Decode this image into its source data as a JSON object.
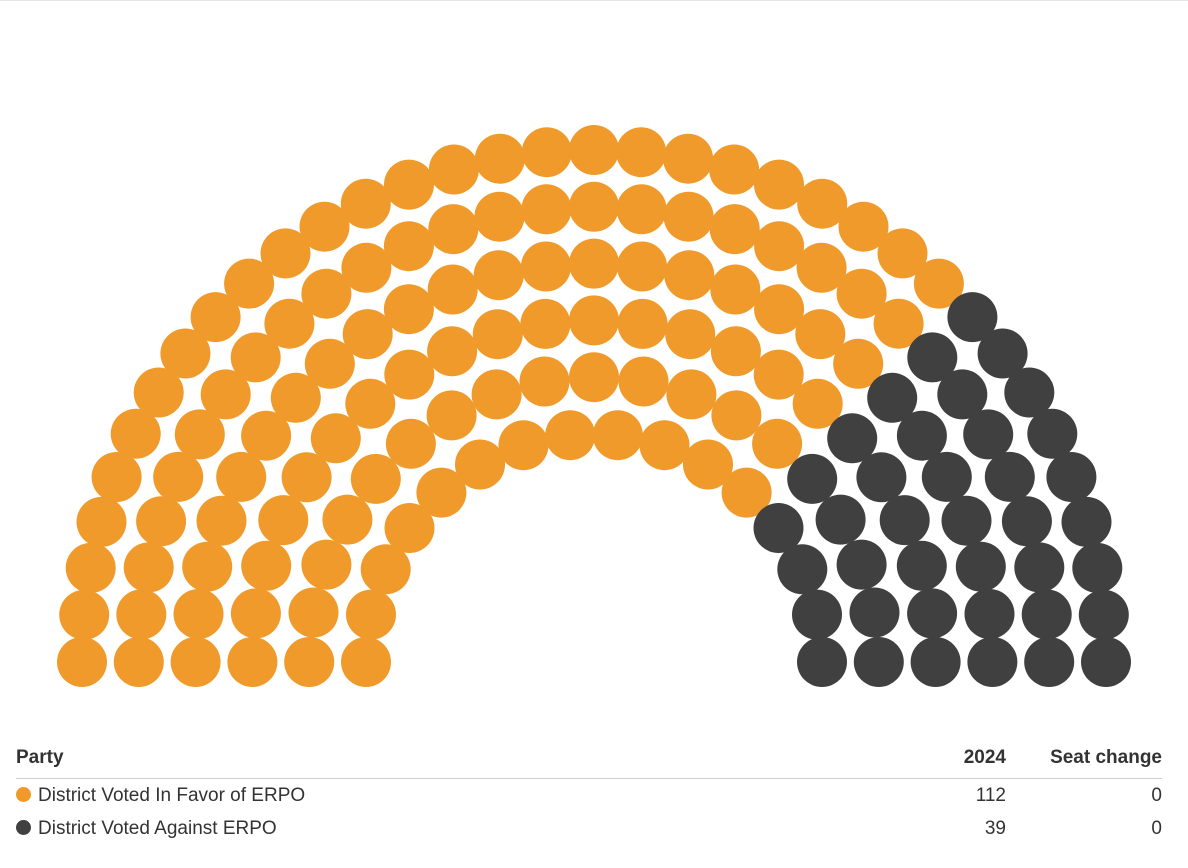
{
  "chart_data": {
    "type": "parliament",
    "title": "",
    "total_seats": 151,
    "series": [
      {
        "name": "District Voted In Favor of ERPO",
        "color": "#ef9a2a",
        "seats_2024": 112,
        "seat_change": 0
      },
      {
        "name": "District Voted Against ERPO",
        "color": "#404040",
        "seats_2024": 39,
        "seat_change": 0
      }
    ]
  },
  "legend": {
    "headers": {
      "party": "Party",
      "year": "2024",
      "change": "Seat change"
    }
  }
}
